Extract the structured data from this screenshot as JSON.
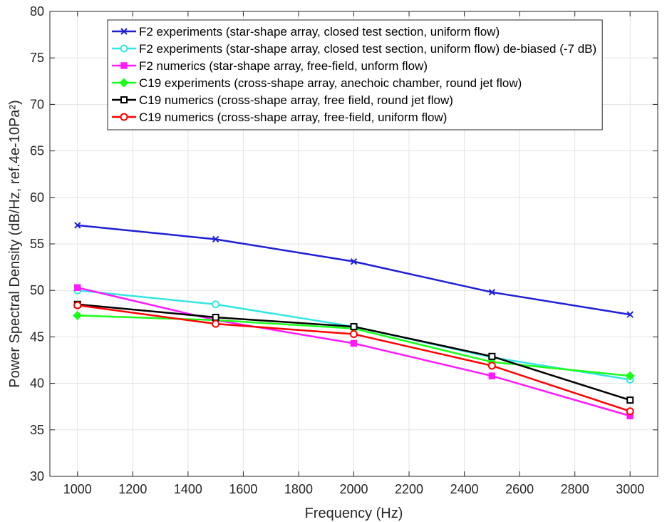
{
  "chart_data": {
    "type": "line",
    "x": [
      1000,
      1500,
      2000,
      2500,
      3000
    ],
    "xlabel": "Frequency (Hz)",
    "ylabel": "Power Spectral Density (dB/Hz, ref.4e-10Pa²)",
    "xlim": [
      900,
      3100
    ],
    "ylim": [
      30,
      80
    ],
    "xticks": [
      1000,
      1200,
      1400,
      1600,
      1800,
      2000,
      2200,
      2400,
      2600,
      2800,
      3000
    ],
    "yticks": [
      30,
      35,
      40,
      45,
      50,
      55,
      60,
      65,
      70,
      75,
      80
    ],
    "grid": true,
    "legend_position": "top-right",
    "series": [
      {
        "name": "F2 experiments (star-shape array, closed test section, uniform flow)",
        "color": "#1f1fd6",
        "marker": "x",
        "values": [
          57.0,
          55.5,
          53.1,
          49.8,
          47.4
        ]
      },
      {
        "name": "F2 experiments (star-shape array, closed test section, uniform flow) de-biased (-7 dB)",
        "color": "#33e6e6",
        "marker": "circle",
        "values": [
          50.0,
          48.5,
          46.1,
          42.8,
          40.4
        ]
      },
      {
        "name": "F2 numerics (star-shape array, free-field, unform flow)",
        "color": "#ff1aff",
        "marker": "square-filled",
        "values": [
          50.3,
          46.8,
          44.3,
          40.8,
          36.5
        ]
      },
      {
        "name": "C19 experiments (cross-shape array, anechoic chamber, round jet flow)",
        "color": "#1aff1a",
        "marker": "diamond",
        "values": [
          47.3,
          46.8,
          45.9,
          42.3,
          40.8
        ]
      },
      {
        "name": "C19 numerics (cross-shape array, free field, round jet flow)",
        "color": "#000000",
        "marker": "square",
        "values": [
          48.5,
          47.1,
          46.1,
          42.9,
          38.2
        ]
      },
      {
        "name": "C19 numerics (cross-shape array, free-field, uniform flow)",
        "color": "#ff0000",
        "marker": "circle",
        "values": [
          48.4,
          46.4,
          45.3,
          41.9,
          37.0
        ]
      }
    ]
  }
}
